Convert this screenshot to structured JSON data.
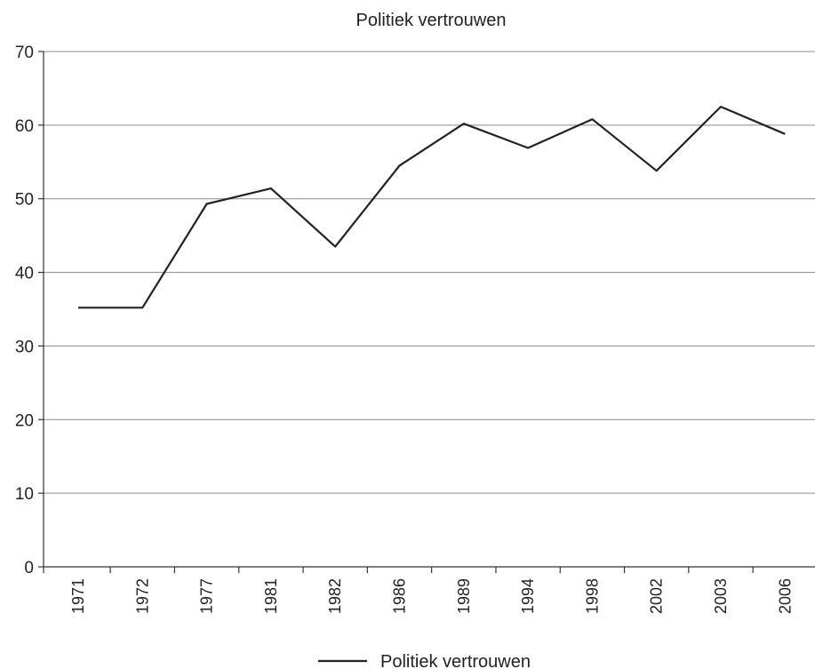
{
  "chart_data": {
    "type": "line",
    "title": "Politiek vertrouwen",
    "xlabel": "",
    "ylabel": "",
    "categories": [
      "1971",
      "1972",
      "1977",
      "1981",
      "1982",
      "1986",
      "1989",
      "1994",
      "1998",
      "2002",
      "2003",
      "2006"
    ],
    "series": [
      {
        "name": "Politiek vertrouwen",
        "values": [
          35.2,
          35.2,
          49.3,
          51.4,
          43.5,
          54.5,
          60.2,
          56.9,
          60.8,
          53.8,
          62.5,
          58.8
        ],
        "color": "#222222"
      }
    ],
    "ylim": [
      0,
      70
    ],
    "yticks": [
      "0",
      "10",
      "20",
      "30",
      "40",
      "50",
      "60",
      "70"
    ],
    "grid": true,
    "legend_position": "bottom"
  }
}
